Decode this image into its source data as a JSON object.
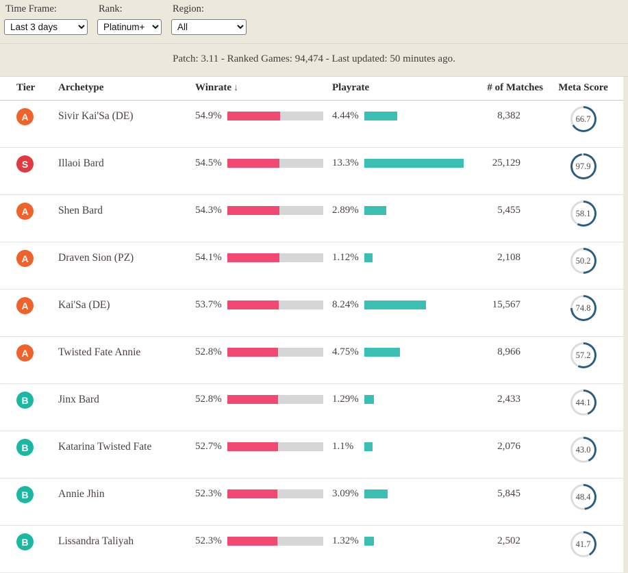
{
  "filters": [
    {
      "label": "Time Frame:",
      "value": "Last 3 days"
    },
    {
      "label": "Rank:",
      "value": "Platinum+"
    },
    {
      "label": "Region:",
      "value": "All"
    }
  ],
  "patch_info": "Patch: 3.11 - Ranked Games: 94,474 - Last updated: 50 minutes ago.",
  "table": {
    "headers": {
      "tier": "Tier",
      "archetype": "Archetype",
      "winrate": "Winrate",
      "sort_icon": "↓",
      "playrate": "Playrate",
      "matches": "# of Matches",
      "meta": "Meta Score"
    },
    "rows": [
      {
        "tier": "A",
        "archetype": "Sivir Kai'Sa (DE)",
        "winrate": "54.9%",
        "winrate_value": 54.9,
        "playrate": "4.44%",
        "playrate_value": 4.44,
        "matches": "8,382",
        "meta_score": "66.7",
        "meta_value": 66.7
      },
      {
        "tier": "S",
        "archetype": "Illaoi Bard",
        "winrate": "54.5%",
        "winrate_value": 54.5,
        "playrate": "13.3%",
        "playrate_value": 13.3,
        "matches": "25,129",
        "meta_score": "97.9",
        "meta_value": 97.9
      },
      {
        "tier": "A",
        "archetype": "Shen Bard",
        "winrate": "54.3%",
        "winrate_value": 54.3,
        "playrate": "2.89%",
        "playrate_value": 2.89,
        "matches": "5,455",
        "meta_score": "58.1",
        "meta_value": 58.1
      },
      {
        "tier": "A",
        "archetype": "Draven Sion (PZ)",
        "winrate": "54.1%",
        "winrate_value": 54.1,
        "playrate": "1.12%",
        "playrate_value": 1.12,
        "matches": "2,108",
        "meta_score": "50.2",
        "meta_value": 50.2
      },
      {
        "tier": "A",
        "archetype": "Kai'Sa (DE)",
        "winrate": "53.7%",
        "winrate_value": 53.7,
        "playrate": "8.24%",
        "playrate_value": 8.24,
        "matches": "15,567",
        "meta_score": "74.8",
        "meta_value": 74.8
      },
      {
        "tier": "A",
        "archetype": "Twisted Fate Annie",
        "winrate": "52.8%",
        "winrate_value": 52.8,
        "playrate": "4.75%",
        "playrate_value": 4.75,
        "matches": "8,966",
        "meta_score": "57.2",
        "meta_value": 57.2
      },
      {
        "tier": "B",
        "archetype": "Jinx Bard",
        "winrate": "52.8%",
        "winrate_value": 52.8,
        "playrate": "1.29%",
        "playrate_value": 1.29,
        "matches": "2,433",
        "meta_score": "44.1",
        "meta_value": 44.1
      },
      {
        "tier": "B",
        "archetype": "Katarina Twisted Fate",
        "winrate": "52.7%",
        "winrate_value": 52.7,
        "playrate": "1.1%",
        "playrate_value": 1.1,
        "matches": "2,076",
        "meta_score": "43.0",
        "meta_value": 43.0
      },
      {
        "tier": "B",
        "archetype": "Annie Jhin",
        "winrate": "52.3%",
        "winrate_value": 52.3,
        "playrate": "3.09%",
        "playrate_value": 3.09,
        "matches": "5,845",
        "meta_score": "48.4",
        "meta_value": 48.4
      },
      {
        "tier": "B",
        "archetype": "Lissandra Taliyah",
        "winrate": "52.3%",
        "winrate_value": 52.3,
        "playrate": "1.32%",
        "playrate_value": 1.32,
        "matches": "2,502",
        "meta_score": "41.7",
        "meta_value": 41.7
      }
    ]
  },
  "colors": {
    "tier_S": "#e0393f",
    "tier_A": "#f0622c",
    "tier_B": "#1ab8a3",
    "winrate_bar": "#f24972",
    "bar_track": "#d6d6d6",
    "playrate_bar": "#3abfb2",
    "gauge_fill": "#2b5d83",
    "gauge_track": "#dcdcdc"
  }
}
